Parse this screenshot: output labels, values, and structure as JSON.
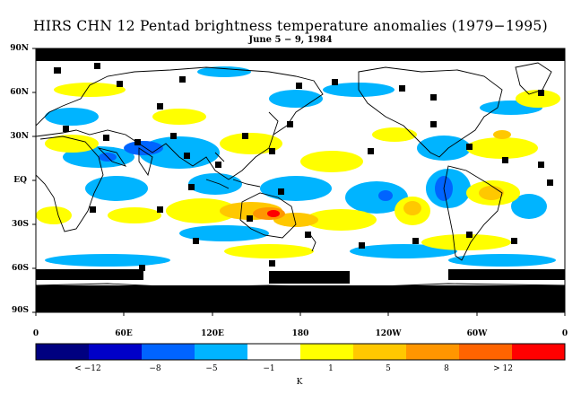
{
  "title": "HIRS CHN 12 Pentad brightness temperature anomalies (1979−1995)",
  "subtitle": "June 5 − 9, 1984",
  "y_axis_labels": [
    "90N",
    "60N",
    "30N",
    "EQ",
    "30S",
    "60S",
    "90S"
  ],
  "x_axis_labels": [
    "0",
    "60E",
    "120E",
    "180",
    "120W",
    "60W",
    "0"
  ],
  "colorbar": {
    "colors": [
      "#000080",
      "#0000c8",
      "#0064ff",
      "#00b4ff",
      "#ffffff",
      "#ffff00",
      "#ffc800",
      "#ff9600",
      "#ff6400",
      "#ff0000"
    ],
    "labels": [
      "< −12",
      "−8",
      "−5",
      "−1",
      "1",
      "5",
      "8",
      "> 12"
    ],
    "unit": "K"
  },
  "palette": {
    "missing": "#000000",
    "land_outline": "#000000"
  }
}
